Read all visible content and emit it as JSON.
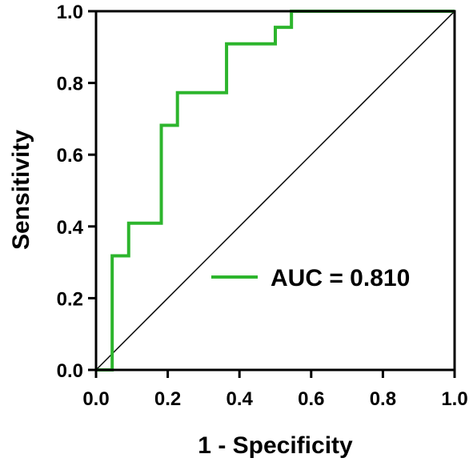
{
  "chart_data": {
    "type": "line",
    "xlabel": "1 - Specificity",
    "ylabel": "Sensitivity",
    "xlim": [
      0,
      1
    ],
    "ylim": [
      0,
      1
    ],
    "xticks": [
      "0.0",
      "0.2",
      "0.4",
      "0.6",
      "0.8",
      "1.0"
    ],
    "yticks": [
      "0.0",
      "0.2",
      "0.4",
      "0.6",
      "0.8",
      "1.0"
    ],
    "grid": false,
    "legend_position": "bottom-right",
    "series": [
      {
        "name": "AUC = 0.810",
        "color": "#2db52d",
        "step": true,
        "points": [
          [
            0,
            0
          ],
          [
            0.045,
            0
          ],
          [
            0.045,
            0.318
          ],
          [
            0.091,
            0.318
          ],
          [
            0.091,
            0.409
          ],
          [
            0.182,
            0.409
          ],
          [
            0.182,
            0.682
          ],
          [
            0.227,
            0.682
          ],
          [
            0.227,
            0.773
          ],
          [
            0.364,
            0.773
          ],
          [
            0.364,
            0.909
          ],
          [
            0.5,
            0.909
          ],
          [
            0.5,
            0.955
          ],
          [
            0.545,
            0.955
          ],
          [
            0.545,
            1.0
          ],
          [
            1.0,
            1.0
          ]
        ]
      }
    ],
    "reference_line": {
      "points": [
        [
          0,
          0
        ],
        [
          1,
          1
        ]
      ],
      "color": "#000000"
    }
  }
}
